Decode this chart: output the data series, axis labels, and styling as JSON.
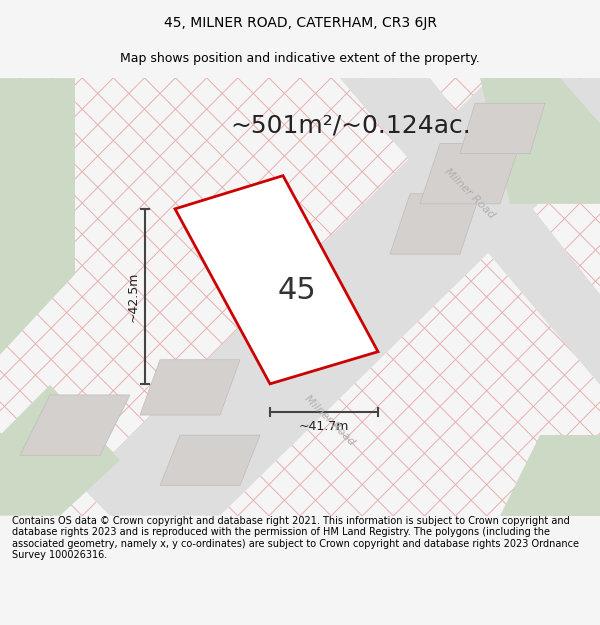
{
  "title_line1": "45, MILNER ROAD, CATERHAM, CR3 6JR",
  "title_line2": "Map shows position and indicative extent of the property.",
  "area_text": "~501m²/~0.124ac.",
  "label_45": "45",
  "dim_height": "~42.5m",
  "dim_width": "~41.7m",
  "road_label_right": "Milner Road",
  "road_label_bottom": "Milner Road",
  "footer_text": "Contains OS data © Crown copyright and database right 2021. This information is subject to Crown copyright and database rights 2023 and is reproduced with the permission of HM Land Registry. The polygons (including the associated geometry, namely x, y co-ordinates) are subject to Crown copyright and database rights 2023 Ordnance Survey 100026316.",
  "bg_color": "#f5f5f5",
  "map_bg": "#f0eeee",
  "plot_fill": "#f8f6f6",
  "plot_edge": "#cc0000",
  "road_fill": "#dedede",
  "green_fill": "#ccd9c5",
  "hatch_color": "#e8b0b0",
  "dim_color": "#444444",
  "road_text_color": "#b0b0b0",
  "title_fontsize": 10,
  "subtitle_fontsize": 9,
  "area_fontsize": 18,
  "label_fontsize": 22,
  "dim_fontsize": 9,
  "road_fontsize": 8,
  "footer_fontsize": 7
}
